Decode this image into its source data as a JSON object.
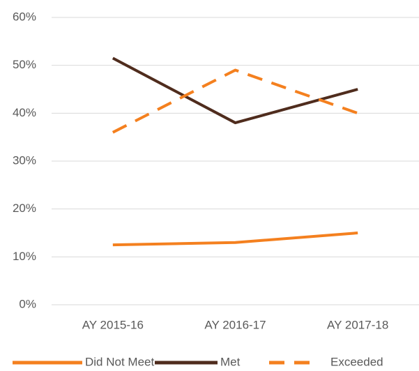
{
  "chart_data": {
    "type": "line",
    "categories": [
      "AY 2015-16",
      "AY 2016-17",
      "AY 2017-18"
    ],
    "series": [
      {
        "name": "Did Not Meet",
        "color": "#f4801f",
        "dashed": false,
        "values": [
          12.5,
          13,
          15
        ]
      },
      {
        "name": "Met",
        "color": "#4f2c1d",
        "dashed": false,
        "values": [
          51.5,
          38,
          45
        ]
      },
      {
        "name": "Exceeded",
        "color": "#f4801f",
        "dashed": true,
        "values": [
          36,
          49,
          40
        ]
      }
    ],
    "ylim": [
      0,
      60
    ],
    "yticks": [
      {
        "value": 0,
        "label": "0%"
      },
      {
        "value": 10,
        "label": "10%"
      },
      {
        "value": 20,
        "label": "20%"
      },
      {
        "value": 30,
        "label": "30%"
      },
      {
        "value": 40,
        "label": "40%"
      },
      {
        "value": 50,
        "label": "50%"
      },
      {
        "value": 60,
        "label": "60%"
      }
    ],
    "grid": true,
    "legend": "bottom"
  }
}
